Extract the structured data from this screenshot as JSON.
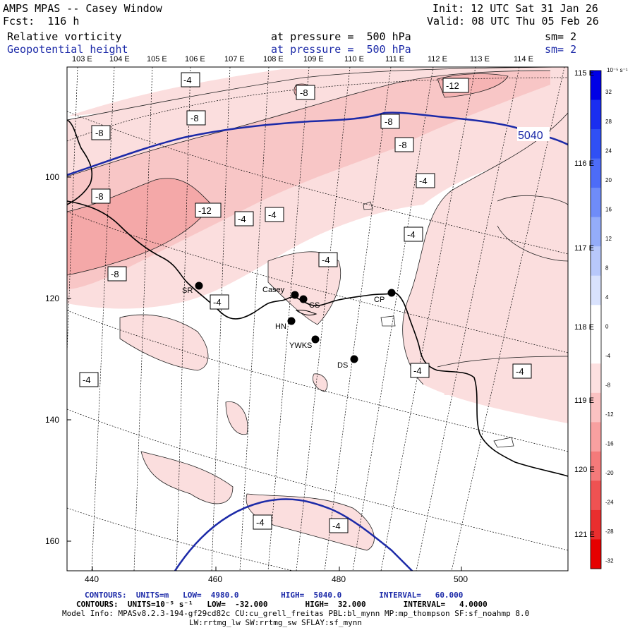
{
  "header": {
    "model": "AMPS MPAS -- Casey Window",
    "fcst": "Fcst:  116 h",
    "init": "Init: 12 UTC Sat 31 Jan 26",
    "valid": "Valid: 08 UTC Thu 05 Feb 26",
    "field1_name": "Relative vorticity",
    "field1_level": "at pressure =  500 hPa",
    "field1_sm": "sm= 2",
    "field2_name": "Geopotential height",
    "field2_level": "at pressure =  500 hPa",
    "field2_sm": "sm= 2"
  },
  "axes": {
    "top_lon": [
      "103 E",
      "104 E",
      "105 E",
      "106 E",
      "107 E",
      "108 E",
      "109 E",
      "110 E",
      "111 E",
      "112 E",
      "113 E",
      "114 E"
    ],
    "right_lon": [
      "115 E",
      "116 E",
      "117 E",
      "118 E",
      "119 E",
      "120 E",
      "121 E"
    ],
    "y_ticks": [
      "100",
      "120",
      "140",
      "160"
    ],
    "x_ticks": [
      "440",
      "460",
      "480",
      "500"
    ]
  },
  "stations": [
    {
      "name": "SR"
    },
    {
      "name": "Casey"
    },
    {
      "name": "CS"
    },
    {
      "name": "CP"
    },
    {
      "name": "HN"
    },
    {
      "name": "YWKS"
    },
    {
      "name": "DS"
    }
  ],
  "contour_labels": [
    "-4",
    "-8",
    "-8",
    "-12",
    "-8",
    "-8",
    "-8",
    "-4",
    "-8",
    "-12",
    "-4",
    "-4",
    "-4",
    "-4",
    "-8",
    "-4",
    "-4",
    "-4",
    "-4",
    "-4",
    "-4"
  ],
  "height_label": "5040",
  "colorbar": {
    "unit": "10⁻⁵ s⁻¹",
    "ticks": [
      "32",
      "28",
      "24",
      "20",
      "16",
      "12",
      "8",
      "4",
      "0",
      "-4",
      "-8",
      "-12",
      "-16",
      "-20",
      "-24",
      "-28",
      "-32"
    ],
    "colors": [
      "#0000e6",
      "#1a2ef0",
      "#3050f5",
      "#4d6cf7",
      "#6f8cf8",
      "#94acf9",
      "#b8c8fb",
      "#d9e2fd",
      "#ffffff",
      "#ffffff",
      "#fde0e0",
      "#fbc2c2",
      "#f8a0a0",
      "#f47a7a",
      "#ef5252",
      "#ea2e2e",
      "#e60000"
    ]
  },
  "footer": {
    "line1": "CONTOURS:  UNITS=m   LOW=  4980.0         HIGH=  5040.0        INTERVAL=   60.000",
    "line2": "CONTOURS:  UNITS=10⁻⁵ s⁻¹   LOW=  -32.000        HIGH=  32.000        INTERVAL=   4.0000",
    "line3": "Model Info: MPASv8.2.3-194-gf29cd82c CU:cu_grell_freitas PBL:bl_mynn MP:mp_thompson SF:sf_noahmp 8.0",
    "line4": "LW:rrtmg_lw SW:rrtmg_sw SFLAY:sf_mynn"
  },
  "colors": {
    "height_line": "#1c2aa8",
    "header_blue": "#1c2aa8"
  }
}
